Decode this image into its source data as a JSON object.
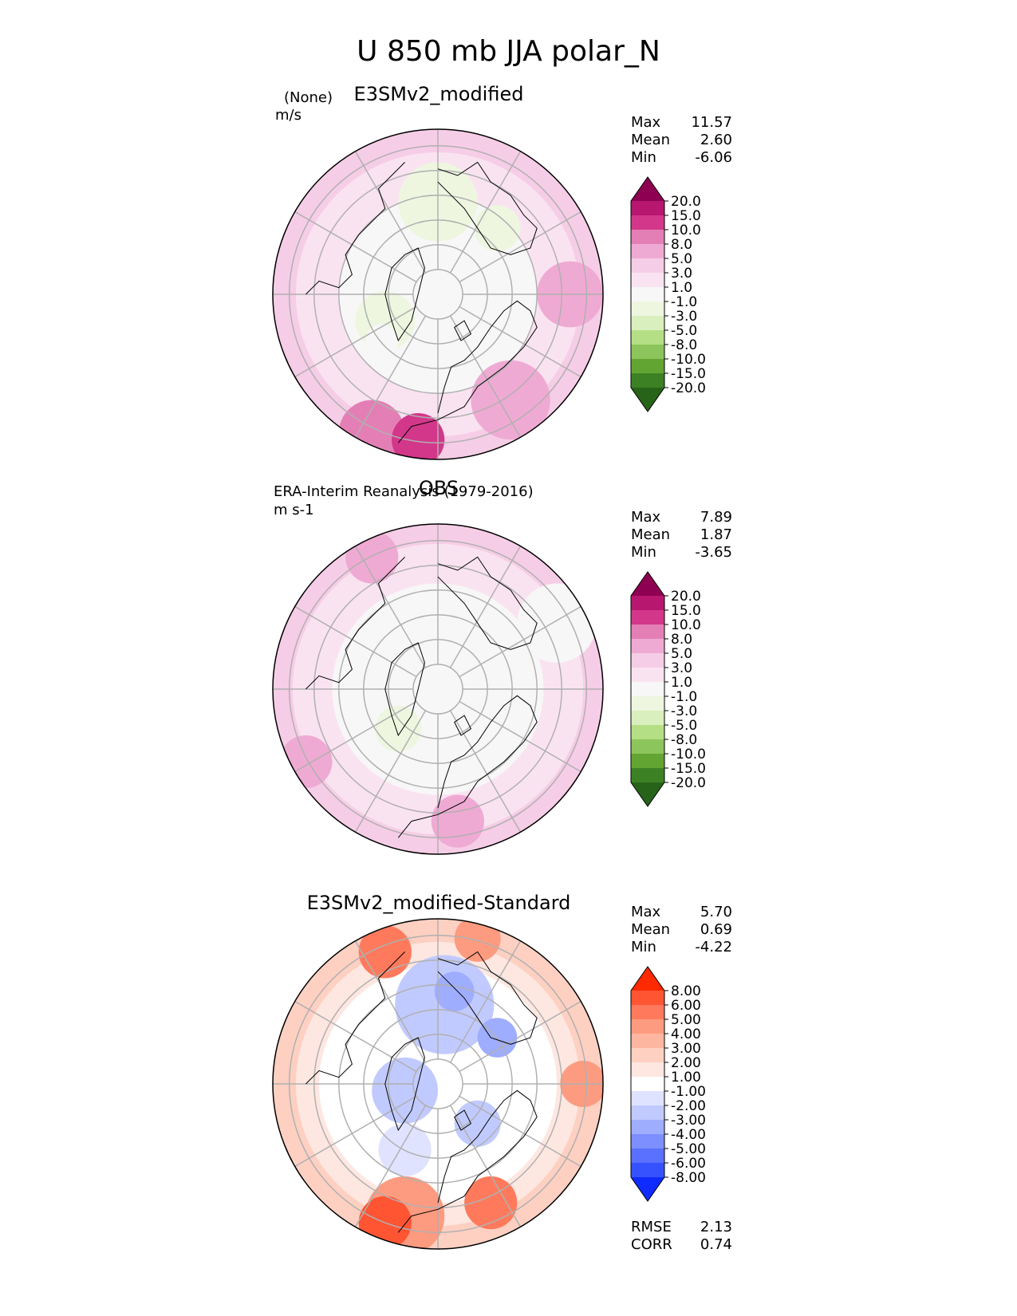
{
  "figure_title": "U 850 mb JJA polar_N",
  "chart_data": [
    {
      "type": "heatmap",
      "projection": "north polar stereographic",
      "title": "E3SMv2_modified",
      "source": "(None)",
      "units": "m/s",
      "stats": {
        "labels": [
          "Max",
          "Mean",
          "Min"
        ],
        "values": [
          "11.57",
          "2.60",
          "-6.06"
        ]
      },
      "colorbar": {
        "levels": [
          "20.0",
          "15.0",
          "10.0",
          "8.0",
          "5.0",
          "3.0",
          "1.0",
          "-1.0",
          "-3.0",
          "-5.0",
          "-8.0",
          "-10.0",
          "-15.0",
          "-20.0"
        ],
        "colors": [
          "#8e0152",
          "#b8176f",
          "#d3378a",
          "#e47fb6",
          "#efaad3",
          "#f6cde6",
          "#fae3f1",
          "#f7f7f7",
          "#eef6e0",
          "#d9efbd",
          "#b5df84",
          "#8cc55c",
          "#63a533",
          "#3c8224",
          "#276419"
        ]
      }
    },
    {
      "type": "heatmap",
      "projection": "north polar stereographic",
      "title": "OBS",
      "source": "ERA-Interim Reanalysis (1979-2016)",
      "units": "m s-1",
      "stats": {
        "labels": [
          "Max",
          "Mean",
          "Min"
        ],
        "values": [
          "7.89",
          "1.87",
          "-3.65"
        ]
      },
      "colorbar": {
        "levels": [
          "20.0",
          "15.0",
          "10.0",
          "8.0",
          "5.0",
          "3.0",
          "1.0",
          "-1.0",
          "-3.0",
          "-5.0",
          "-8.0",
          "-10.0",
          "-15.0",
          "-20.0"
        ],
        "colors": [
          "#8e0152",
          "#b8176f",
          "#d3378a",
          "#e47fb6",
          "#efaad3",
          "#f6cde6",
          "#fae3f1",
          "#f7f7f7",
          "#eef6e0",
          "#d9efbd",
          "#b5df84",
          "#8cc55c",
          "#63a533",
          "#3c8224",
          "#276419"
        ]
      }
    },
    {
      "type": "heatmap",
      "projection": "north polar stereographic",
      "title": "E3SMv2_modified-Standard",
      "stats": {
        "labels": [
          "Max",
          "Mean",
          "Min"
        ],
        "values": [
          "5.70",
          "0.69",
          "-4.22"
        ]
      },
      "metrics": {
        "labels": [
          "RMSE",
          "CORR"
        ],
        "values": [
          "2.13",
          "0.74"
        ]
      },
      "colorbar": {
        "levels": [
          "8.00",
          "6.00",
          "5.00",
          "4.00",
          "3.00",
          "2.00",
          "1.00",
          "-1.00",
          "-2.00",
          "-3.00",
          "-4.00",
          "-5.00",
          "-6.00",
          "-8.00"
        ],
        "colors": [
          "#ff2a00",
          "#ff5533",
          "#ff7a5c",
          "#fd9b80",
          "#fdb6a0",
          "#fdd0c2",
          "#fde7e0",
          "#ffffff",
          "#dfe3ff",
          "#c1caff",
          "#9fadff",
          "#7d8fff",
          "#5a70ff",
          "#3652ff",
          "#0f2bff"
        ]
      }
    }
  ]
}
